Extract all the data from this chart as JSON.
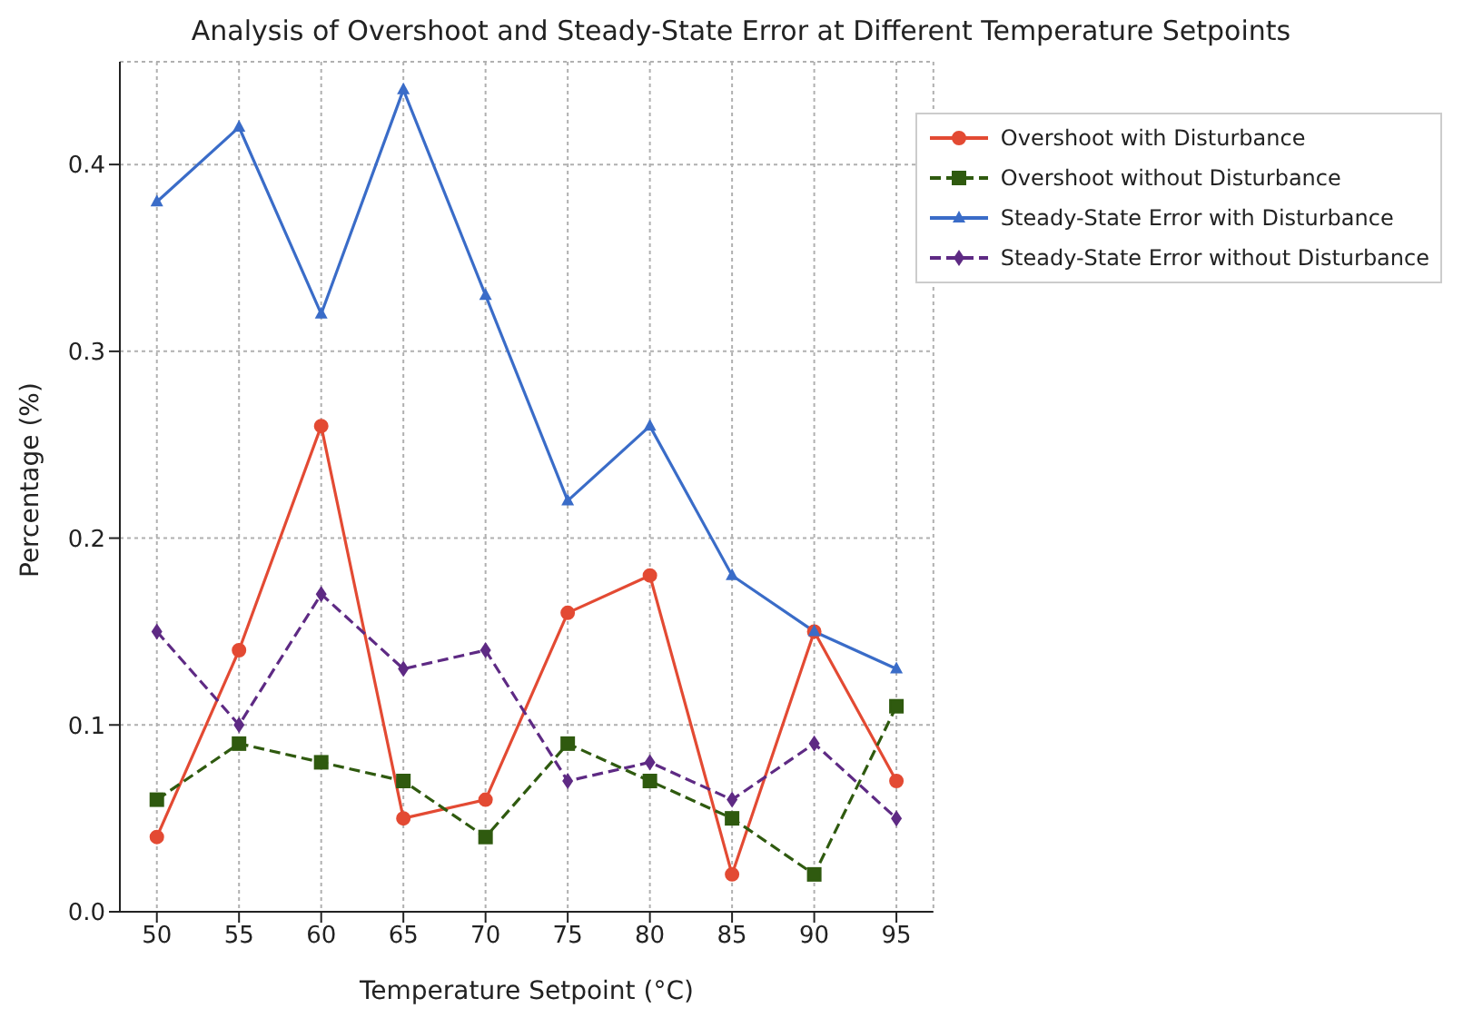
{
  "chart_data": {
    "type": "line",
    "title": "Analysis of Overshoot and Steady-State Error at Different Temperature Setpoints",
    "xlabel": "Temperature Setpoint (°C)",
    "ylabel": "Percentage (%)",
    "x": [
      50,
      55,
      60,
      65,
      70,
      75,
      80,
      85,
      90,
      95
    ],
    "series": [
      {
        "name": "Overshoot with Disturbance",
        "color": "#e34a33",
        "marker": "circle",
        "line_style": "solid",
        "values": [
          0.04,
          0.14,
          0.26,
          0.05,
          0.06,
          0.16,
          0.18,
          0.02,
          0.15,
          0.07
        ]
      },
      {
        "name": "Overshoot without Disturbance",
        "color": "#2f5a0f",
        "marker": "square",
        "line_style": "dashed",
        "values": [
          0.06,
          0.09,
          0.08,
          0.07,
          0.04,
          0.09,
          0.07,
          0.05,
          0.02,
          0.11
        ]
      },
      {
        "name": "Steady-State Error with Disturbance",
        "color": "#3a6cc8",
        "marker": "triangle",
        "line_style": "solid",
        "values": [
          0.38,
          0.42,
          0.32,
          0.44,
          0.33,
          0.22,
          0.26,
          0.18,
          0.15,
          0.13
        ]
      },
      {
        "name": "Steady-State Error without Disturbance",
        "color": "#5e2a84",
        "marker": "diamond",
        "line_style": "dashed",
        "values": [
          0.15,
          0.1,
          0.17,
          0.13,
          0.14,
          0.07,
          0.08,
          0.06,
          0.09,
          0.05
        ]
      }
    ],
    "xlim": [
      47.75,
      97.25
    ],
    "xticks": [
      50,
      55,
      60,
      65,
      70,
      75,
      80,
      85,
      90,
      95
    ],
    "ylim": [
      0,
      0.455
    ],
    "yticks": [
      {
        "value": 0,
        "label": "0.0"
      },
      {
        "value": 0.1,
        "label": "0.1"
      },
      {
        "value": 0.2,
        "label": "0.2"
      },
      {
        "value": 0.3,
        "label": "0.3"
      },
      {
        "value": 0.4,
        "label": "0.4"
      }
    ],
    "grid": true,
    "legend": "top right"
  }
}
